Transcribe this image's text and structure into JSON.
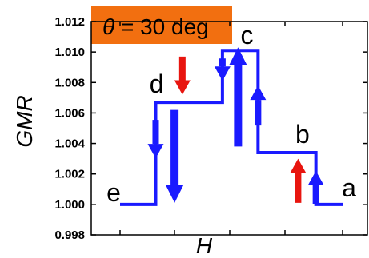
{
  "chart_data": {
    "type": "line",
    "title": "θ = 30 deg",
    "title_symbol": "θ",
    "title_rest": " = 30 deg",
    "title_bg": "#f26f10",
    "xlabel": "H",
    "ylabel": "GMR",
    "ylim": [
      0.998,
      1.012
    ],
    "yticks": [
      "1.012",
      "1.010",
      "1.008",
      "1.006",
      "1.004",
      "1.002",
      "1.000",
      "0.998"
    ],
    "ytick_values": [
      1.012,
      1.01,
      1.008,
      1.006,
      1.004,
      1.002,
      1.0,
      0.998
    ],
    "x_ticks_labeled": false,
    "grid": false,
    "line_color": "#1a1aff",
    "series": [
      {
        "x": [
          0.0,
          0.16,
          0.16,
          0.46,
          0.46,
          0.62,
          0.62,
          0.88,
          0.88,
          1.0
        ],
        "values": [
          1.0,
          1.0,
          1.0067,
          1.0067,
          1.0101,
          1.0101,
          1.0034,
          1.0034,
          1.0,
          1.0
        ]
      }
    ],
    "point_labels": [
      {
        "text": "a",
        "x": 1.0,
        "y": 1.0
      },
      {
        "text": "b",
        "x": 0.82,
        "y": 1.0034
      },
      {
        "text": "c",
        "x": 0.57,
        "y": 1.0101
      },
      {
        "text": "d",
        "x": 0.2,
        "y": 1.0067
      },
      {
        "text": "e",
        "x": 0.0,
        "y": 1.0
      }
    ],
    "arrows": [
      {
        "color": "#1a1aff",
        "direction": "up",
        "size": "small"
      },
      {
        "color": "#1a1aff",
        "direction": "up",
        "size": "small"
      },
      {
        "color": "#1a1aff",
        "direction": "up",
        "size": "large"
      },
      {
        "color": "#1a1aff",
        "direction": "down",
        "size": "small"
      },
      {
        "color": "#1a1aff",
        "direction": "down",
        "size": "small"
      },
      {
        "color": "#1a1aff",
        "direction": "down",
        "size": "large"
      },
      {
        "color": "#e8150f",
        "direction": "up",
        "size": "small"
      },
      {
        "color": "#e8150f",
        "direction": "down",
        "size": "small"
      }
    ]
  }
}
